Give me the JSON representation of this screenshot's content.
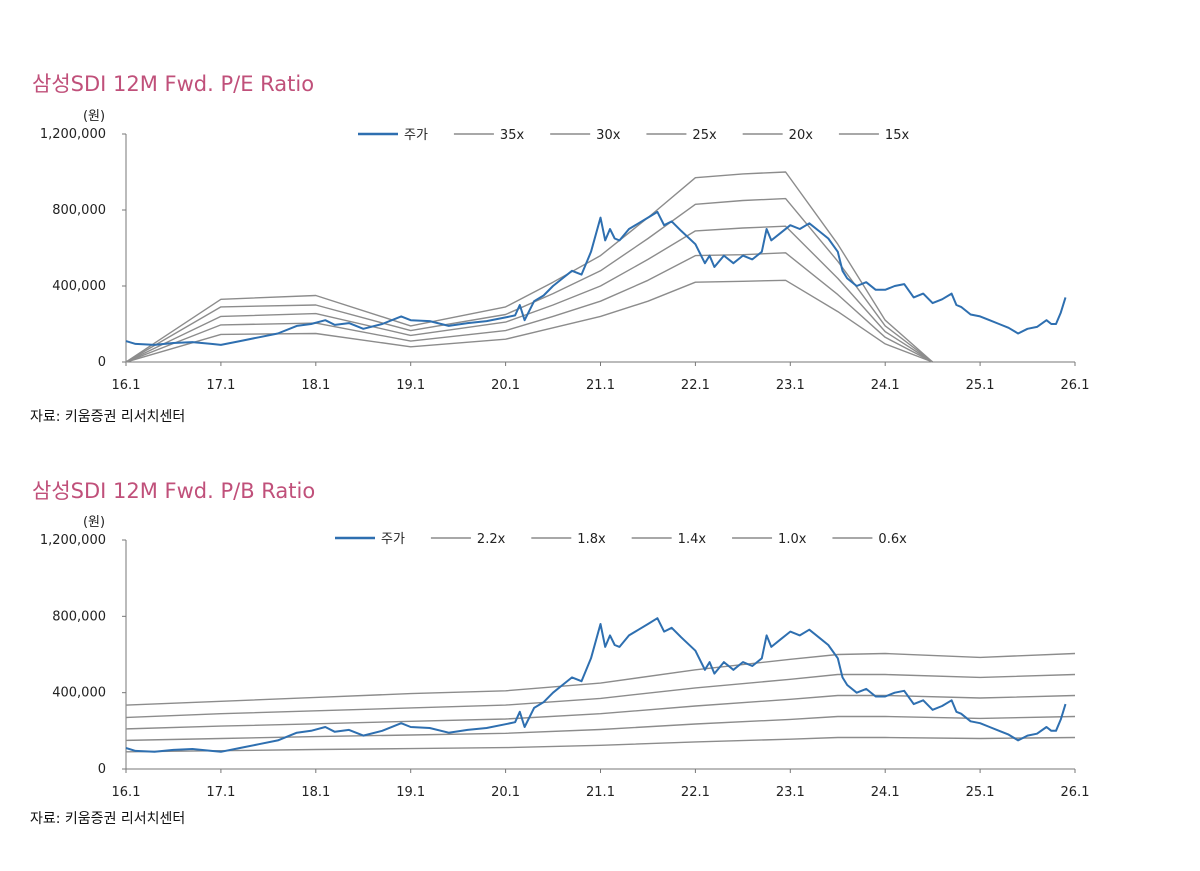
{
  "chart_data": [
    {
      "type": "line",
      "title": "삼성SDI 12M Fwd. P/E Ratio",
      "ylabel": "(원)",
      "source": "자료: 키움증권 리서치센터",
      "categories": [
        "16.1",
        "17.1",
        "18.1",
        "19.1",
        "20.1",
        "21.1",
        "22.1",
        "23.1",
        "24.1",
        "25.1",
        "26.1"
      ],
      "x": [
        2016.0,
        2017.0,
        2018.0,
        2019.0,
        2020.0,
        2021.0,
        2022.0,
        2023.0,
        2024.0,
        2025.0,
        2026.0
      ],
      "xlim": [
        2016.0,
        2026.0
      ],
      "ylim": [
        0,
        1200000
      ],
      "yticks": [
        0,
        400000,
        800000,
        1200000
      ],
      "ytick_labels": [
        "0",
        "400,000",
        "800,000",
        "1,200,000"
      ],
      "legend": "top-center",
      "series": [
        {
          "name": "주가",
          "color": "#2e6fb0",
          "x": [
            2016.0,
            2016.1,
            2016.3,
            2016.5,
            2016.7,
            2016.9,
            2017.0,
            2017.2,
            2017.4,
            2017.6,
            2017.8,
            2017.95,
            2018.1,
            2018.2,
            2018.35,
            2018.5,
            2018.7,
            2018.9,
            2019.0,
            2019.2,
            2019.4,
            2019.6,
            2019.8,
            2020.0,
            2020.1,
            2020.15,
            2020.2,
            2020.3,
            2020.4,
            2020.5,
            2020.6,
            2020.7,
            2020.8,
            2020.9,
            2021.0,
            2021.05,
            2021.1,
            2021.15,
            2021.2,
            2021.3,
            2021.4,
            2021.5,
            2021.6,
            2021.67,
            2021.75,
            2021.85,
            2022.0,
            2022.1,
            2022.15,
            2022.2,
            2022.3,
            2022.4,
            2022.5,
            2022.6,
            2022.7,
            2022.75,
            2022.8,
            2022.9,
            2023.0,
            2023.1,
            2023.2,
            2023.3,
            2023.4,
            2023.5,
            2023.55,
            2023.6,
            2023.7,
            2023.8,
            2023.9,
            2024.0,
            2024.1,
            2024.2,
            2024.3,
            2024.4,
            2024.5,
            2024.6,
            2024.7,
            2024.75,
            2024.8,
            2024.9,
            2025.0,
            2025.1,
            2025.2,
            2025.3,
            2025.4,
            2025.5,
            2025.6,
            2025.7,
            2025.75,
            2025.8,
            2025.85,
            2025.9
          ],
          "y": [
            110000,
            95000,
            90000,
            100000,
            105000,
            95000,
            90000,
            110000,
            130000,
            150000,
            190000,
            200000,
            220000,
            195000,
            205000,
            175000,
            200000,
            240000,
            220000,
            215000,
            190000,
            205000,
            215000,
            235000,
            245000,
            300000,
            220000,
            320000,
            350000,
            400000,
            440000,
            480000,
            460000,
            580000,
            760000,
            640000,
            700000,
            650000,
            640000,
            700000,
            730000,
            760000,
            790000,
            720000,
            740000,
            690000,
            620000,
            520000,
            560000,
            500000,
            560000,
            520000,
            560000,
            540000,
            580000,
            700000,
            640000,
            680000,
            720000,
            700000,
            730000,
            690000,
            650000,
            580000,
            480000,
            440000,
            400000,
            420000,
            380000,
            380000,
            400000,
            410000,
            340000,
            360000,
            310000,
            330000,
            360000,
            300000,
            290000,
            250000,
            240000,
            220000,
            200000,
            180000,
            150000,
            175000,
            185000,
            220000,
            200000,
            200000,
            260000,
            340000
          ]
        },
        {
          "name": "35x",
          "color": "#8c8c8c",
          "x": [
            2016.0,
            2017.0,
            2018.0,
            2019.0,
            2020.0,
            2020.5,
            2021.0,
            2021.5,
            2022.0,
            2022.5,
            2022.95,
            2023.5,
            2024.0,
            2024.5
          ],
          "y": [
            0,
            330000,
            350000,
            190000,
            290000,
            420000,
            560000,
            760000,
            970000,
            990000,
            1000000,
            620000,
            220000,
            0
          ]
        },
        {
          "name": "30x",
          "color": "#8c8c8c",
          "x": [
            2016.0,
            2017.0,
            2018.0,
            2019.0,
            2020.0,
            2020.5,
            2021.0,
            2021.5,
            2022.0,
            2022.5,
            2022.95,
            2023.5,
            2024.0,
            2024.5
          ],
          "y": [
            0,
            290000,
            300000,
            165000,
            250000,
            360000,
            480000,
            650000,
            830000,
            850000,
            860000,
            530000,
            190000,
            0
          ]
        },
        {
          "name": "25x",
          "color": "#8c8c8c",
          "x": [
            2016.0,
            2017.0,
            2018.0,
            2019.0,
            2020.0,
            2020.5,
            2021.0,
            2021.5,
            2022.0,
            2022.5,
            2022.95,
            2023.5,
            2024.0,
            2024.5
          ],
          "y": [
            0,
            240000,
            255000,
            140000,
            210000,
            300000,
            400000,
            540000,
            690000,
            705000,
            715000,
            440000,
            160000,
            0
          ]
        },
        {
          "name": "20x",
          "color": "#8c8c8c",
          "x": [
            2016.0,
            2017.0,
            2018.0,
            2019.0,
            2020.0,
            2020.5,
            2021.0,
            2021.5,
            2022.0,
            2022.5,
            2022.95,
            2023.5,
            2024.0,
            2024.5
          ],
          "y": [
            0,
            195000,
            205000,
            110000,
            165000,
            240000,
            320000,
            430000,
            560000,
            565000,
            575000,
            355000,
            130000,
            0
          ]
        },
        {
          "name": "15x",
          "color": "#8c8c8c",
          "x": [
            2016.0,
            2017.0,
            2018.0,
            2019.0,
            2020.0,
            2020.5,
            2021.0,
            2021.5,
            2022.0,
            2022.5,
            2022.95,
            2023.5,
            2024.0,
            2024.5
          ],
          "y": [
            0,
            145000,
            150000,
            80000,
            120000,
            180000,
            240000,
            320000,
            420000,
            425000,
            430000,
            265000,
            95000,
            0
          ]
        }
      ]
    },
    {
      "type": "line",
      "title": "삼성SDI 12M Fwd. P/B Ratio",
      "ylabel": "(원)",
      "source": "자료: 키움증권 리서치센터",
      "categories": [
        "16.1",
        "17.1",
        "18.1",
        "19.1",
        "20.1",
        "21.1",
        "22.1",
        "23.1",
        "24.1",
        "25.1",
        "26.1"
      ],
      "x": [
        2016.0,
        2017.0,
        2018.0,
        2019.0,
        2020.0,
        2021.0,
        2022.0,
        2023.0,
        2024.0,
        2025.0,
        2026.0
      ],
      "xlim": [
        2016.0,
        2026.0
      ],
      "ylim": [
        0,
        1200000
      ],
      "yticks": [
        0,
        400000,
        800000,
        1200000
      ],
      "ytick_labels": [
        "0",
        "400,000",
        "800,000",
        "1,200,000"
      ],
      "legend": "top-center",
      "series": [
        {
          "name": "주가",
          "color": "#2e6fb0",
          "x": [
            2016.0,
            2016.1,
            2016.3,
            2016.5,
            2016.7,
            2016.9,
            2017.0,
            2017.2,
            2017.4,
            2017.6,
            2017.8,
            2017.95,
            2018.1,
            2018.2,
            2018.35,
            2018.5,
            2018.7,
            2018.9,
            2019.0,
            2019.2,
            2019.4,
            2019.6,
            2019.8,
            2020.0,
            2020.1,
            2020.15,
            2020.2,
            2020.3,
            2020.4,
            2020.5,
            2020.6,
            2020.7,
            2020.8,
            2020.9,
            2021.0,
            2021.05,
            2021.1,
            2021.15,
            2021.2,
            2021.3,
            2021.4,
            2021.5,
            2021.6,
            2021.67,
            2021.75,
            2021.85,
            2022.0,
            2022.1,
            2022.15,
            2022.2,
            2022.3,
            2022.4,
            2022.5,
            2022.6,
            2022.7,
            2022.75,
            2022.8,
            2022.9,
            2023.0,
            2023.1,
            2023.2,
            2023.3,
            2023.4,
            2023.5,
            2023.55,
            2023.6,
            2023.7,
            2023.8,
            2023.9,
            2024.0,
            2024.1,
            2024.2,
            2024.3,
            2024.4,
            2024.5,
            2024.6,
            2024.7,
            2024.75,
            2024.8,
            2024.9,
            2025.0,
            2025.1,
            2025.2,
            2025.3,
            2025.4,
            2025.5,
            2025.6,
            2025.7,
            2025.75,
            2025.8,
            2025.85,
            2025.9
          ],
          "y": [
            110000,
            95000,
            90000,
            100000,
            105000,
            95000,
            90000,
            110000,
            130000,
            150000,
            190000,
            200000,
            220000,
            195000,
            205000,
            175000,
            200000,
            240000,
            220000,
            215000,
            190000,
            205000,
            215000,
            235000,
            245000,
            300000,
            220000,
            320000,
            350000,
            400000,
            440000,
            480000,
            460000,
            580000,
            760000,
            640000,
            700000,
            650000,
            640000,
            700000,
            730000,
            760000,
            790000,
            720000,
            740000,
            690000,
            620000,
            520000,
            560000,
            500000,
            560000,
            520000,
            560000,
            540000,
            580000,
            700000,
            640000,
            680000,
            720000,
            700000,
            730000,
            690000,
            650000,
            580000,
            480000,
            440000,
            400000,
            420000,
            380000,
            380000,
            400000,
            410000,
            340000,
            360000,
            310000,
            330000,
            360000,
            300000,
            290000,
            250000,
            240000,
            220000,
            200000,
            180000,
            150000,
            175000,
            185000,
            220000,
            200000,
            200000,
            260000,
            340000
          ]
        },
        {
          "name": "2.2x",
          "color": "#8c8c8c",
          "x": [
            2016.0,
            2017.0,
            2018.0,
            2019.0,
            2020.0,
            2021.0,
            2022.0,
            2023.0,
            2023.5,
            2024.0,
            2025.0,
            2026.0
          ],
          "y": [
            335000,
            355000,
            375000,
            395000,
            410000,
            450000,
            520000,
            575000,
            600000,
            605000,
            585000,
            605000
          ]
        },
        {
          "name": "1.8x",
          "color": "#8c8c8c",
          "x": [
            2016.0,
            2017.0,
            2018.0,
            2019.0,
            2020.0,
            2021.0,
            2022.0,
            2023.0,
            2023.5,
            2024.0,
            2025.0,
            2026.0
          ],
          "y": [
            270000,
            290000,
            305000,
            320000,
            335000,
            370000,
            425000,
            470000,
            495000,
            495000,
            480000,
            495000
          ]
        },
        {
          "name": "1.4x",
          "color": "#8c8c8c",
          "x": [
            2016.0,
            2017.0,
            2018.0,
            2019.0,
            2020.0,
            2021.0,
            2022.0,
            2023.0,
            2023.5,
            2024.0,
            2025.0,
            2026.0
          ],
          "y": [
            210000,
            225000,
            237000,
            250000,
            262000,
            290000,
            330000,
            365000,
            385000,
            385000,
            372000,
            385000
          ]
        },
        {
          "name": "1.0x",
          "color": "#8c8c8c",
          "x": [
            2016.0,
            2017.0,
            2018.0,
            2019.0,
            2020.0,
            2021.0,
            2022.0,
            2023.0,
            2023.5,
            2024.0,
            2025.0,
            2026.0
          ],
          "y": [
            150000,
            160000,
            170000,
            178000,
            187000,
            207000,
            236000,
            260000,
            275000,
            275000,
            265000,
            275000
          ]
        },
        {
          "name": "0.6x",
          "color": "#8c8c8c",
          "x": [
            2016.0,
            2017.0,
            2018.0,
            2019.0,
            2020.0,
            2021.0,
            2022.0,
            2023.0,
            2023.5,
            2024.0,
            2025.0,
            2026.0
          ],
          "y": [
            90000,
            96000,
            102000,
            107000,
            112000,
            124000,
            142000,
            156000,
            165000,
            165000,
            160000,
            165000
          ]
        }
      ]
    }
  ]
}
